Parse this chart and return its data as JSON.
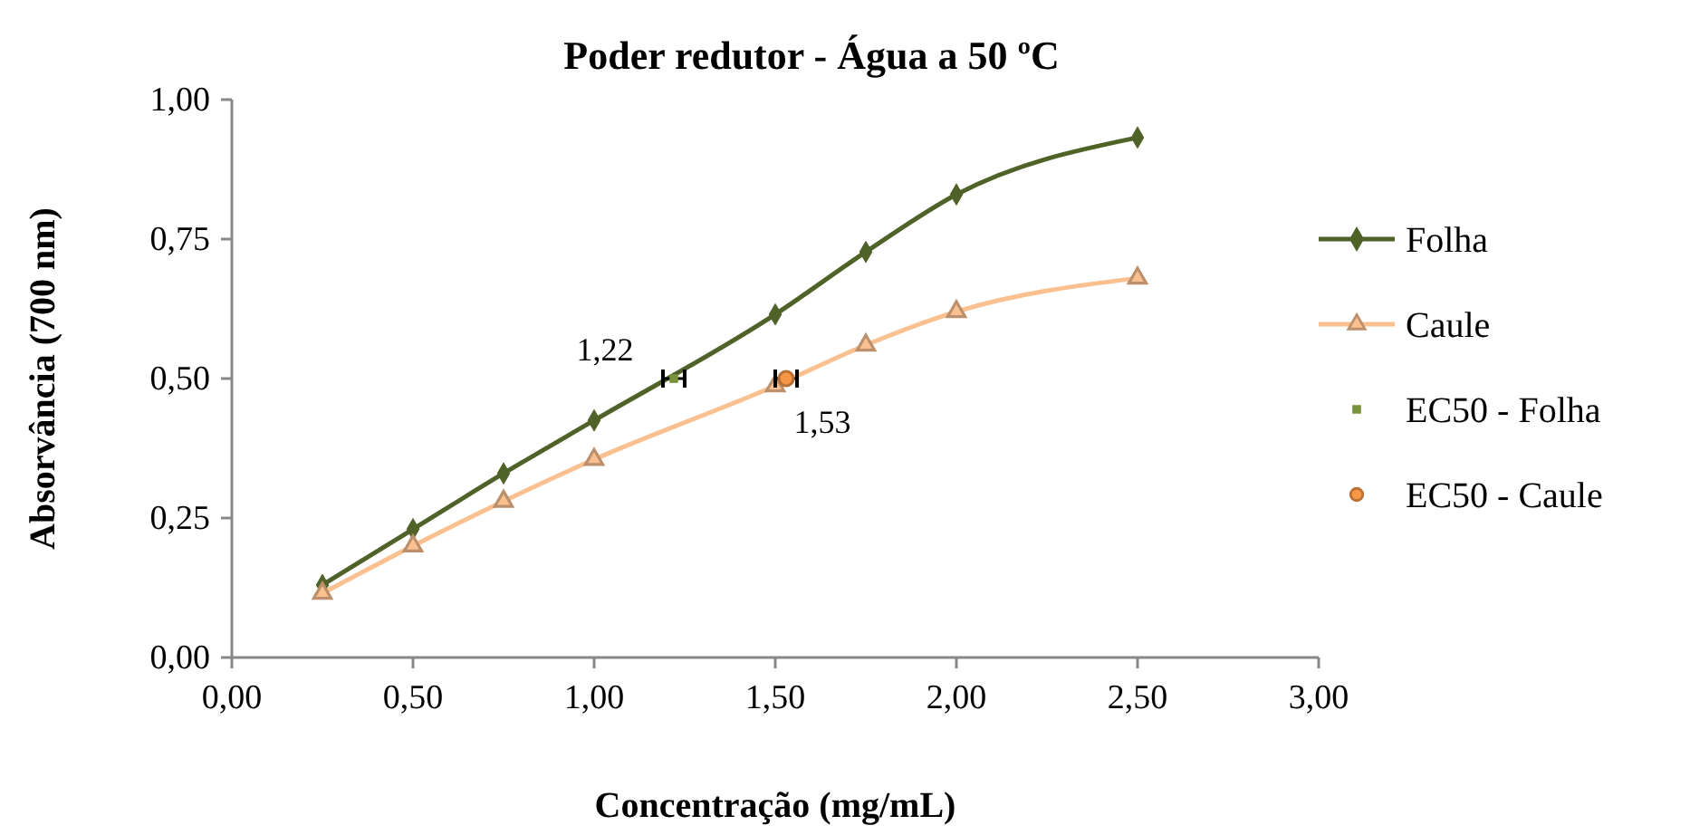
{
  "chart_data": {
    "type": "line",
    "title": "Poder redutor - Água a 50 ºC",
    "xlabel": "Concentração (mg/mL)",
    "ylabel": "Absorvância (700 nm)",
    "xlim": [
      0,
      3
    ],
    "xticks": [
      {
        "value": 0,
        "label": "0,00"
      },
      {
        "value": 0.5,
        "label": "0,50"
      },
      {
        "value": 1,
        "label": "1,00"
      },
      {
        "value": 1.5,
        "label": "1,50"
      },
      {
        "value": 2,
        "label": "2,00"
      },
      {
        "value": 2.5,
        "label": "2,50"
      },
      {
        "value": 3,
        "label": "3,00"
      }
    ],
    "ylim": [
      0,
      1
    ],
    "yticks": [
      {
        "value": 0,
        "label": "0,00"
      },
      {
        "value": 0.25,
        "label": "0,25"
      },
      {
        "value": 0.5,
        "label": "0,50"
      },
      {
        "value": 0.75,
        "label": "0,75"
      },
      {
        "value": 1,
        "label": "1,00"
      }
    ],
    "grid": false,
    "legend": "right",
    "series": [
      {
        "name": "Folha",
        "type": "line",
        "marker": "diamond",
        "color": "#4f6228",
        "x": [
          0.25,
          0.5,
          0.75,
          1,
          1.5,
          1.75,
          2,
          2.5
        ],
        "values": [
          0.13,
          0.23,
          0.33,
          0.425,
          0.615,
          0.727,
          0.83,
          0.932
        ]
      },
      {
        "name": "Caule",
        "type": "line",
        "marker": "triangle",
        "color": "#fac090",
        "x": [
          0.25,
          0.5,
          0.75,
          1,
          1.5,
          1.75,
          2,
          2.5
        ],
        "values": [
          0.115,
          0.2,
          0.28,
          0.355,
          0.487,
          0.56,
          0.62,
          0.68
        ]
      },
      {
        "name": "EC50 - Folha",
        "type": "scatter",
        "marker": "square",
        "color": "#77933c",
        "x": [
          1.22
        ],
        "values": [
          0.5
        ],
        "xerrors": [
          0.03
        ]
      },
      {
        "name": "EC50 - Caule",
        "type": "scatter",
        "marker": "circle",
        "color": "#f79646",
        "x": [
          1.53
        ],
        "values": [
          0.5
        ],
        "xerrors": [
          0.03
        ]
      }
    ],
    "annotations": [
      {
        "text": "1,22",
        "x": 1.22,
        "y": 0.5
      },
      {
        "text": "1,53",
        "x": 1.53,
        "y": 0.5
      }
    ]
  }
}
